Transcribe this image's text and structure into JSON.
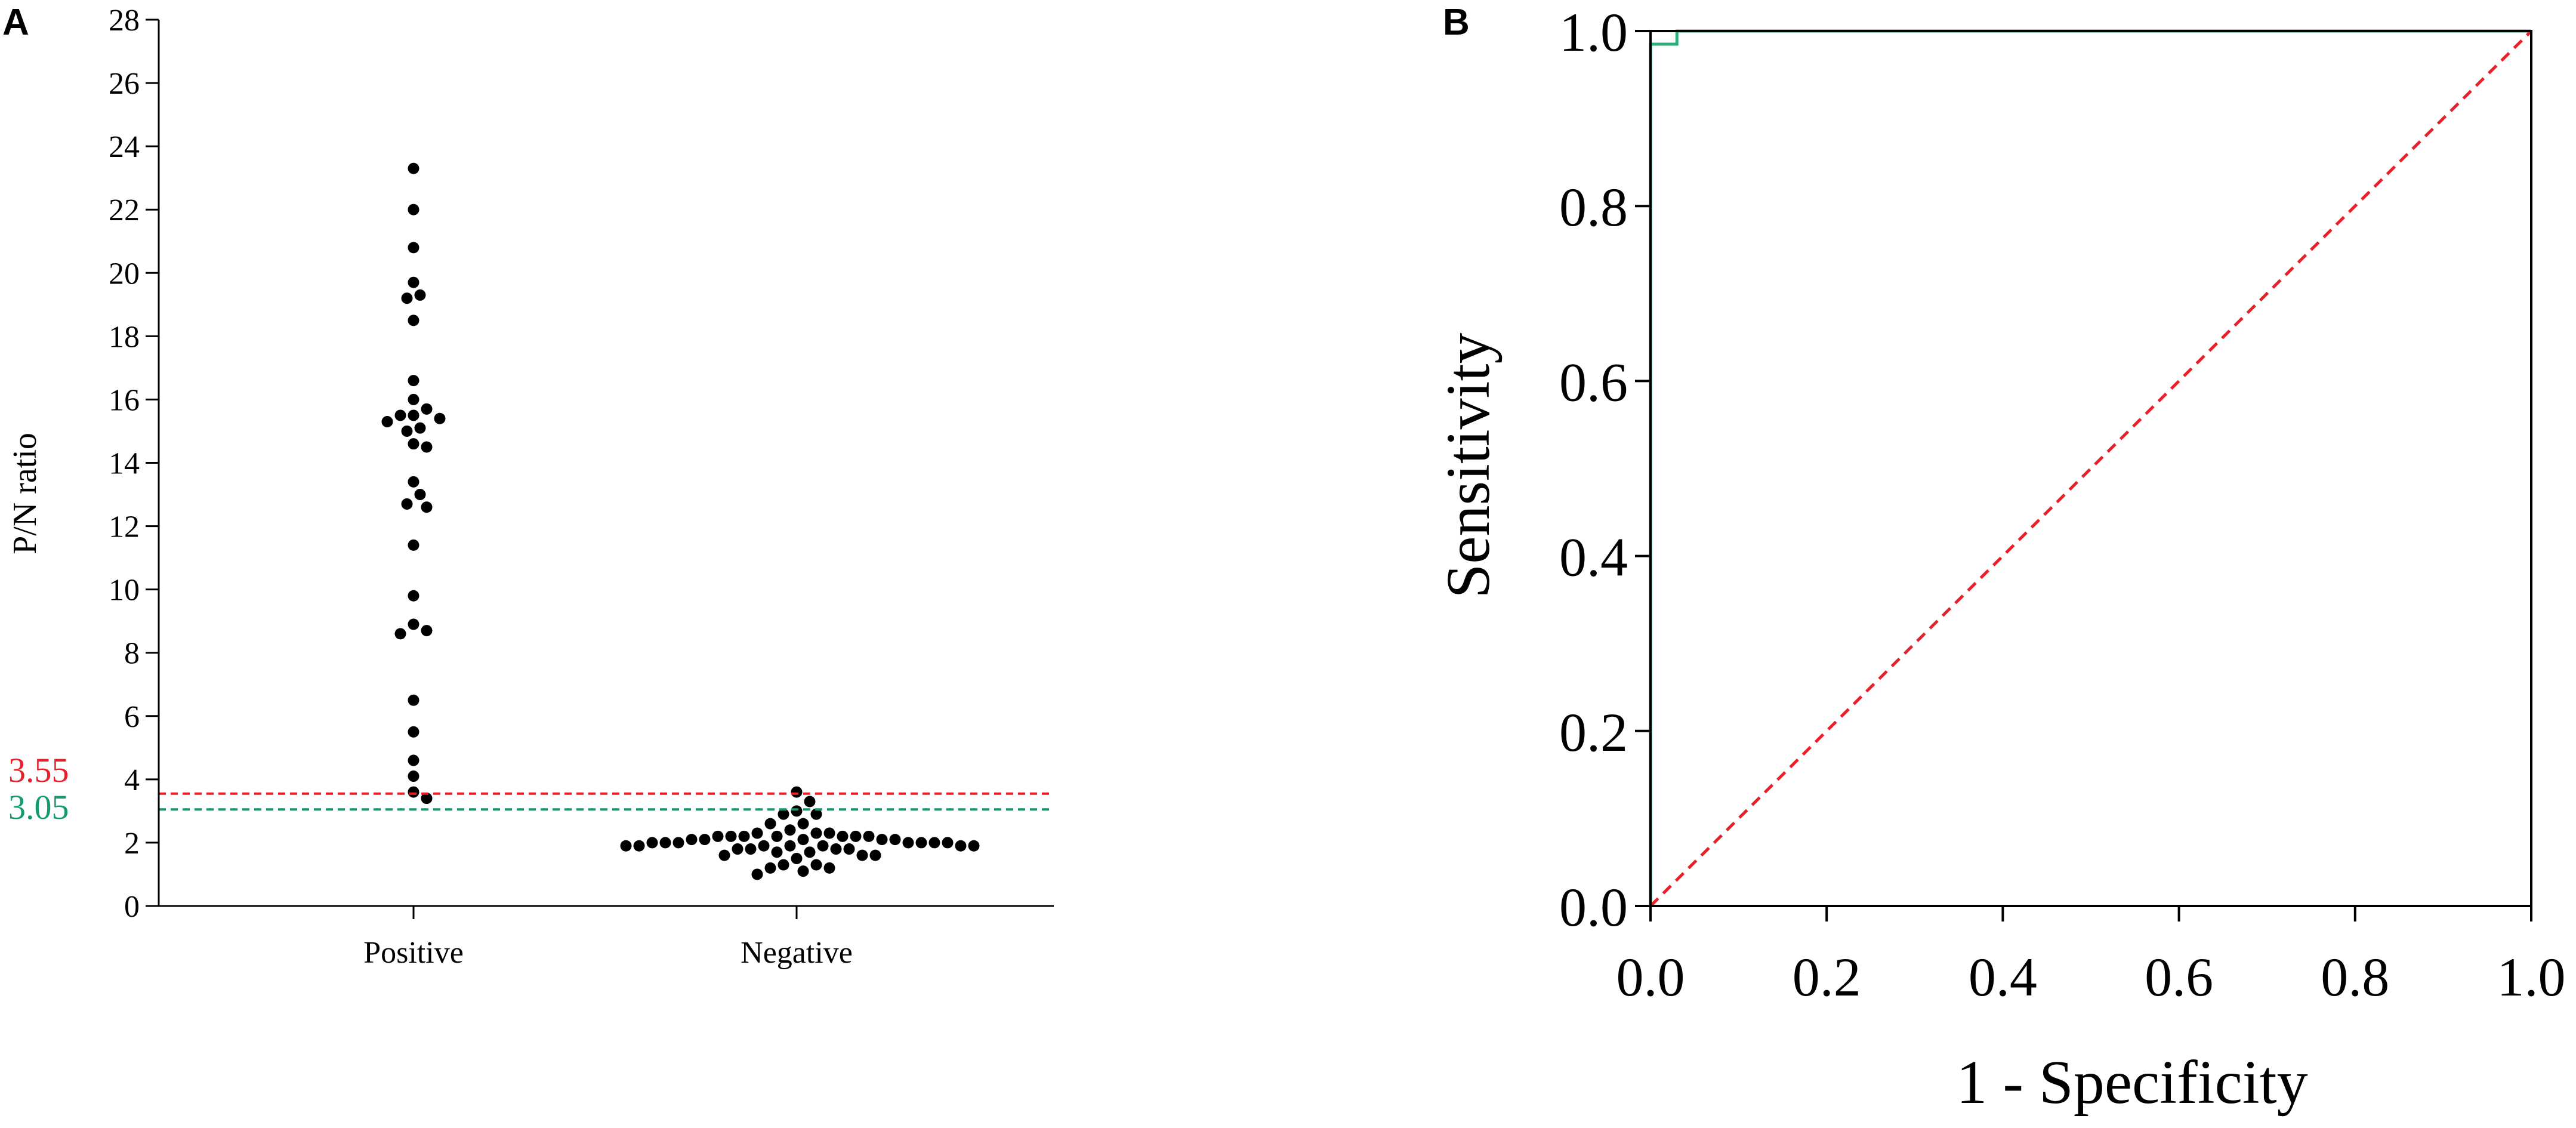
{
  "chart_data": [
    {
      "panel": "A",
      "type": "scatter",
      "ylabel": "P/N ratio",
      "xlabel": "",
      "categories": [
        "Positive",
        "Negative"
      ],
      "ylim": [
        0,
        28
      ],
      "yticks": [
        0,
        2,
        4,
        6,
        8,
        10,
        12,
        14,
        16,
        18,
        20,
        22,
        24,
        26,
        28
      ],
      "series": [
        {
          "category": "Positive",
          "values": [
            23.3,
            22.0,
            20.8,
            19.7,
            19.3,
            19.2,
            18.5,
            16.6,
            16.0,
            15.7,
            15.5,
            15.5,
            15.4,
            15.3,
            15.1,
            15.0,
            14.6,
            14.5,
            13.4,
            13.0,
            12.7,
            12.6,
            11.4,
            9.8,
            8.9,
            8.7,
            8.6,
            6.5,
            5.5,
            4.6,
            4.1,
            3.6,
            3.4
          ]
        },
        {
          "category": "Negative",
          "values": [
            3.6,
            3.3,
            3.0,
            2.9,
            2.9,
            2.6,
            2.6,
            2.4,
            2.3,
            2.3,
            2.3,
            2.2,
            2.2,
            2.2,
            2.2,
            2.2,
            2.2,
            2.2,
            2.1,
            2.1,
            2.1,
            2.1,
            2.1,
            2.0,
            2.0,
            2.0,
            2.0,
            2.0,
            2.0,
            2.0,
            1.9,
            1.9,
            1.9,
            1.9,
            1.9,
            1.9,
            1.9,
            1.8,
            1.8,
            1.8,
            1.8,
            1.7,
            1.7,
            1.6,
            1.6,
            1.6,
            1.5,
            1.3,
            1.3,
            1.2,
            1.2,
            1.1,
            1.0
          ]
        }
      ],
      "cutoffs": [
        {
          "value": 3.55,
          "label": "3.55",
          "color": "#e8202a"
        },
        {
          "value": 3.05,
          "label": "3.05",
          "color": "#139a6e"
        }
      ]
    },
    {
      "panel": "B",
      "type": "line",
      "xlabel": "1 - Specificity",
      "ylabel": "Sensitivity",
      "xlim": [
        0,
        1
      ],
      "ylim": [
        0,
        1
      ],
      "xticks": [
        "0.0",
        "0.2",
        "0.4",
        "0.6",
        "0.8",
        "1.0"
      ],
      "yticks": [
        "0.0",
        "0.2",
        "0.4",
        "0.6",
        "0.8",
        "1.0"
      ],
      "series": [
        {
          "color": "#2bb07a",
          "x": [
            0,
            0,
            0.03,
            0.03,
            1
          ],
          "y": [
            0,
            0.985,
            0.985,
            1,
            1
          ]
        },
        {
          "color": "#e8202a",
          "style": "dashed",
          "x": [
            0,
            1
          ],
          "y": [
            0,
            1
          ]
        }
      ]
    }
  ]
}
